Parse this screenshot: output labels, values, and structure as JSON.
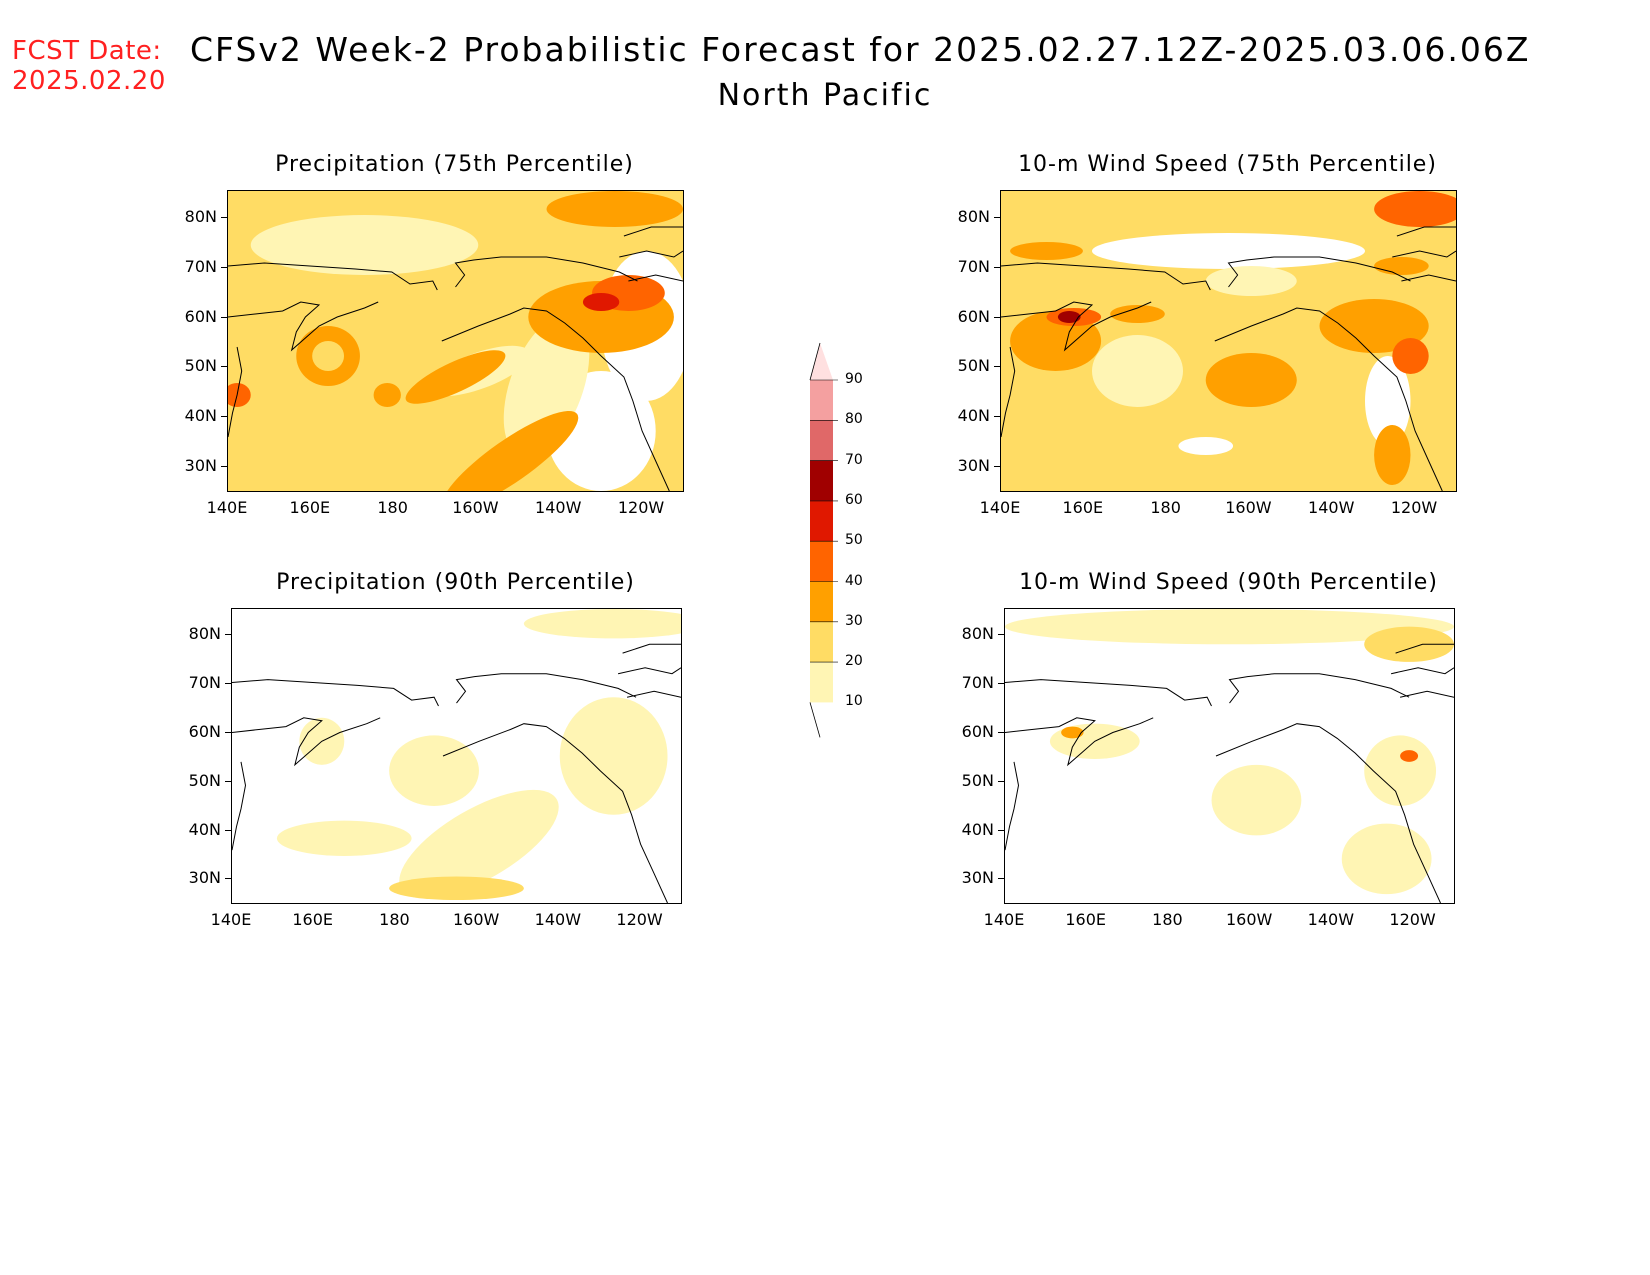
{
  "header": {
    "fcst_label": "FCST Date:",
    "fcst_date": "2025.02.20",
    "title": "CFSv2 Week-2 Probabilistic Forecast for 2025.02.27.12Z-2025.03.06.06Z",
    "subtitle": "North Pacific"
  },
  "axes": {
    "lat_ticks": [
      "80N",
      "70N",
      "60N",
      "50N",
      "40N",
      "30N"
    ],
    "lon_ticks": [
      "140E",
      "160E",
      "180",
      "160W",
      "140W",
      "120W"
    ]
  },
  "panels": [
    {
      "id": "precip-75",
      "title": "Precipitation (75th Percentile)",
      "intensity": "high"
    },
    {
      "id": "wind-75",
      "title": "10-m Wind Speed (75th Percentile)",
      "intensity": "high"
    },
    {
      "id": "precip-90",
      "title": "Precipitation (90th Percentile)",
      "intensity": "low"
    },
    {
      "id": "wind-90",
      "title": "10-m Wind Speed (90th Percentile)",
      "intensity": "low"
    }
  ],
  "colorbar": {
    "labels": [
      "90",
      "80",
      "70",
      "60",
      "50",
      "40",
      "30",
      "20",
      "10"
    ],
    "colors": [
      "#ffe0e0",
      "#f4a0a0",
      "#e06868",
      "#a00000",
      "#e01800",
      "#ff6400",
      "#ffa000",
      "#ffdc64",
      "#fff5b4"
    ]
  }
}
